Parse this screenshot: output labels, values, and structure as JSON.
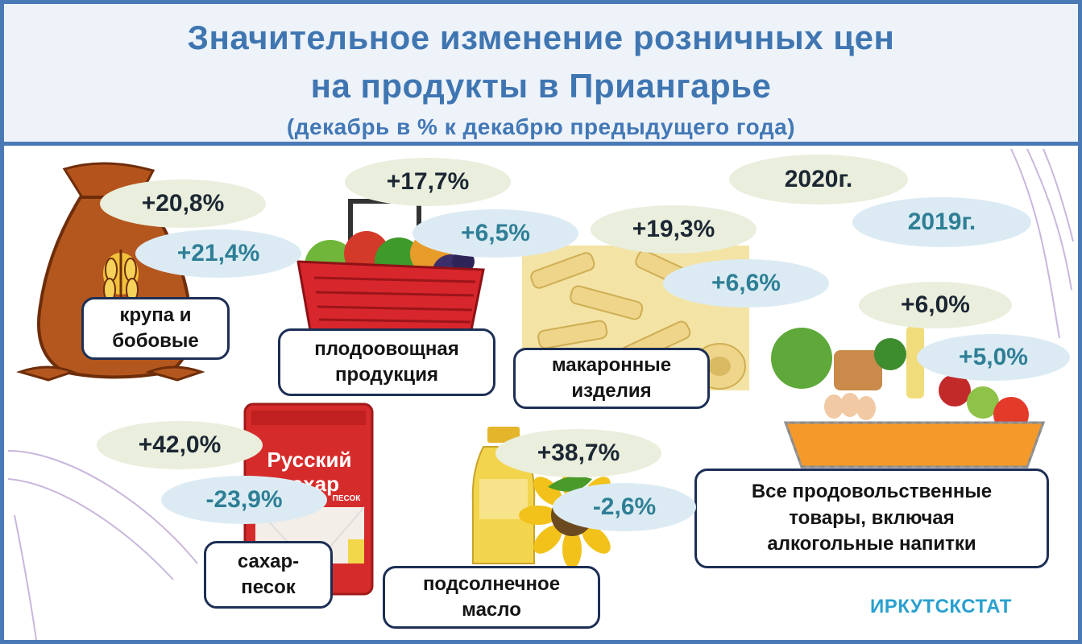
{
  "header": {
    "title_line1": "Значительное изменение розничных цен",
    "title_line2": "на продукты в Приангарье",
    "subtitle": "(декабрь в % к декабрю предыдущего года)"
  },
  "legend": {
    "y2020": "2020г.",
    "y2019": "2019г."
  },
  "items": {
    "groats": {
      "label": "крупа и\nбобовые",
      "v2020": "+20,8%",
      "v2019": "+21,4%"
    },
    "fruit_veg": {
      "label": "плодоовощная\nпродукция",
      "v2020": "+17,7%",
      "v2019": "+6,5%"
    },
    "pasta": {
      "label": "макаронные\nизделия",
      "v2020": "+19,3%",
      "v2019": "+6,6%"
    },
    "all_food": {
      "label": "Все продовольственные\nтовары, включая\nалкогольные напитки",
      "v2020": "+6,0%",
      "v2019": "+5,0%"
    },
    "sugar": {
      "label": "сахар-\nпесок",
      "v2020": "+42,0%",
      "v2019": "-23,9%"
    },
    "oil": {
      "label": "подсолнечное\nмасло",
      "v2020": "+38,7%",
      "v2019": "-2,6%"
    }
  },
  "sugar_pack": {
    "line1": "Русский",
    "line2": "сахар",
    "line3": "ПЕСОК"
  },
  "source": "ИРКУТСКСТАТ",
  "colors": {
    "frame": "#4a7ab5",
    "title": "#3f76b2",
    "pill_2020": "#eaeedd",
    "pill_2019": "#dcebf3",
    "text_2019": "#2e7f96",
    "source": "#29a0cf"
  }
}
